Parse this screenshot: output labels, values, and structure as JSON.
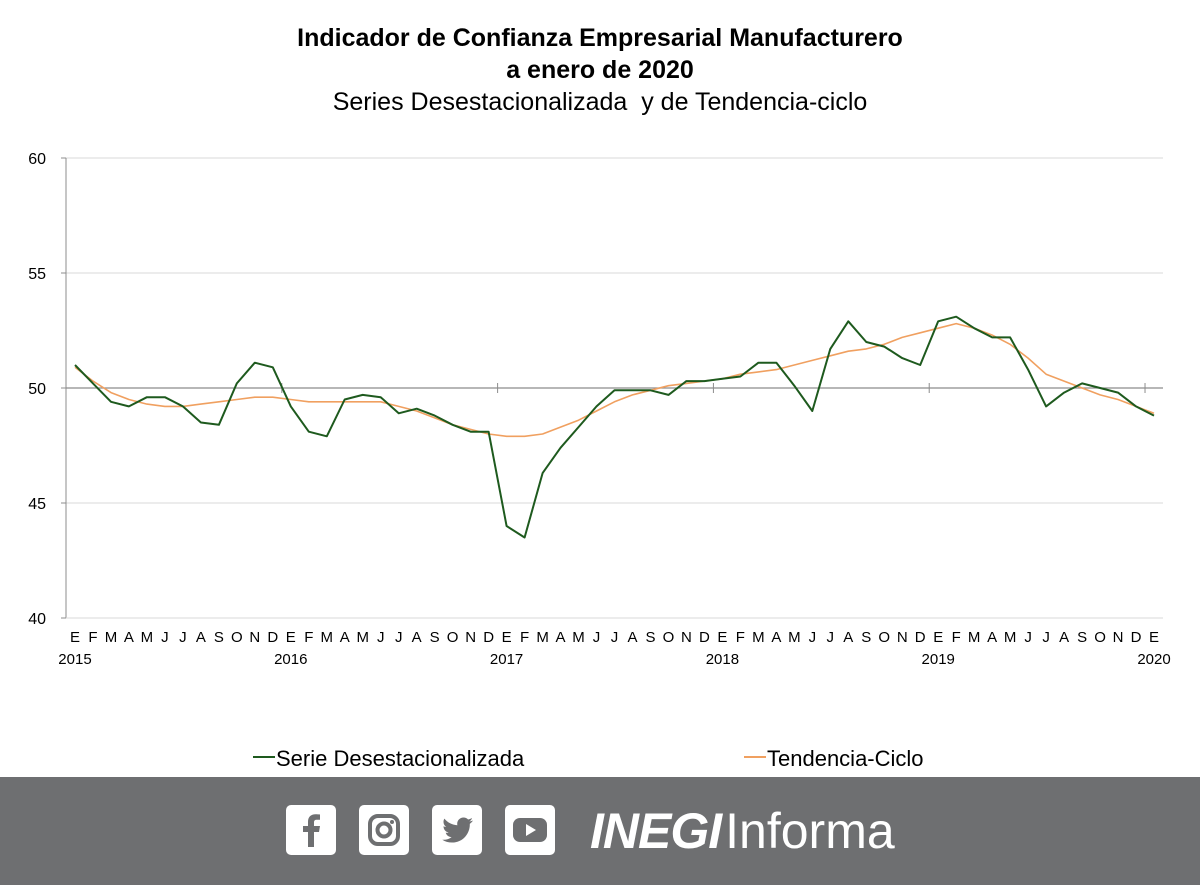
{
  "header": {
    "title_line1": "Indicador de Confianza Empresarial Manufacturero",
    "title_line2": "a enero de 2020",
    "subtitle": "Series Desestacionalizada  y de Tendencia-ciclo"
  },
  "chart_data": {
    "type": "line",
    "ylim": [
      40,
      60
    ],
    "yticks": [
      "40",
      "45",
      "50",
      "55",
      "60"
    ],
    "reference_line": 50,
    "grid": true,
    "legend_position": "bottom",
    "month_labels": [
      "E",
      "F",
      "M",
      "A",
      "M",
      "J",
      "J",
      "A",
      "S",
      "O",
      "N",
      "D",
      "E",
      "F",
      "M",
      "A",
      "M",
      "J",
      "J",
      "A",
      "S",
      "O",
      "N",
      "D",
      "E",
      "F",
      "M",
      "A",
      "M",
      "J",
      "J",
      "A",
      "S",
      "O",
      "N",
      "D",
      "E",
      "F",
      "M",
      "A",
      "M",
      "J",
      "J",
      "A",
      "S",
      "O",
      "N",
      "D",
      "E",
      "F",
      "M",
      "A",
      "M",
      "J",
      "J",
      "A",
      "S",
      "O",
      "N",
      "D",
      "E"
    ],
    "year_labels": [
      {
        "label": "2015",
        "index": 0
      },
      {
        "label": "2016",
        "index": 12
      },
      {
        "label": "2017",
        "index": 24
      },
      {
        "label": "2018",
        "index": 36
      },
      {
        "label": "2019",
        "index": 48
      },
      {
        "label": "2020",
        "index": 60
      }
    ],
    "series": [
      {
        "name": "Serie Desestacionalizada",
        "color": "#1e5a1e",
        "values": [
          51.0,
          50.2,
          49.4,
          49.2,
          49.6,
          49.6,
          49.2,
          48.5,
          48.4,
          50.2,
          51.1,
          50.9,
          49.2,
          48.1,
          47.9,
          49.5,
          49.7,
          49.6,
          48.9,
          49.1,
          48.8,
          48.4,
          48.1,
          48.1,
          44.0,
          43.5,
          46.3,
          47.4,
          48.3,
          49.2,
          49.9,
          49.9,
          49.9,
          49.7,
          50.3,
          50.3,
          50.4,
          50.5,
          51.1,
          51.1,
          50.1,
          49.0,
          51.7,
          52.9,
          52.0,
          51.8,
          51.3,
          51.0,
          52.9,
          53.1,
          52.6,
          52.2,
          52.2,
          50.8,
          49.2,
          49.8,
          50.2,
          50.0,
          49.8,
          49.2,
          48.8
        ]
      },
      {
        "name": "Tendencia-Ciclo",
        "color": "#f0a060",
        "values": [
          50.9,
          50.3,
          49.8,
          49.5,
          49.3,
          49.2,
          49.2,
          49.3,
          49.4,
          49.5,
          49.6,
          49.6,
          49.5,
          49.4,
          49.4,
          49.4,
          49.4,
          49.4,
          49.2,
          49.0,
          48.7,
          48.4,
          48.2,
          48.0,
          47.9,
          47.9,
          48.0,
          48.3,
          48.6,
          49.0,
          49.4,
          49.7,
          49.9,
          50.1,
          50.2,
          50.3,
          50.4,
          50.6,
          50.7,
          50.8,
          51.0,
          51.2,
          51.4,
          51.6,
          51.7,
          51.9,
          52.2,
          52.4,
          52.6,
          52.8,
          52.6,
          52.3,
          51.9,
          51.3,
          50.6,
          50.3,
          50.0,
          49.7,
          49.5,
          49.2,
          48.9
        ]
      }
    ]
  },
  "footer": {
    "brand_bold": "INEGI",
    "brand_regular": "Informa",
    "bg_color": "#6e6f71",
    "social_icons": [
      "facebook-icon",
      "instagram-icon",
      "twitter-icon",
      "youtube-icon"
    ]
  }
}
